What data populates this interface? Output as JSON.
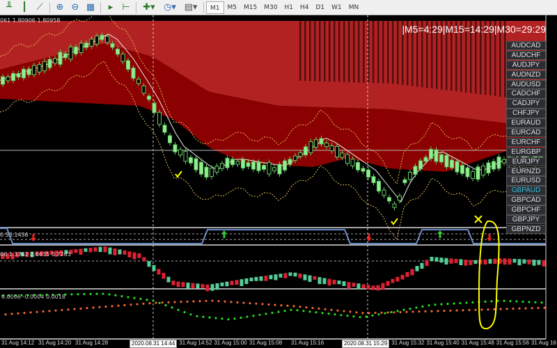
{
  "toolbar": {
    "icons": [
      "bar-chart-icon",
      "candlestick-icon",
      "line-chart-icon",
      "zoom-in-icon",
      "zoom-out-icon",
      "tile-windows-icon",
      "auto-scroll-icon",
      "chart-shift-icon",
      "new-indicator-icon",
      "periods-clock-icon",
      "templates-icon"
    ],
    "timeframes": [
      "M1",
      "M5",
      "M15",
      "M30",
      "H1",
      "H4",
      "D1",
      "W1",
      "MN"
    ],
    "active_timeframe": "M1"
  },
  "chart": {
    "ohlc_header": "061 1.80906 1.80958",
    "timer": "|M5=4:29|M15=14:29|M30=29:29",
    "indicator2_label": "0 53.1436",
    "indicator3_label": "06 1.3762 2.6635 0.7263",
    "indicator4_label": "0.0006 -0.0004 0.0018"
  },
  "symbols": [
    "AUDCAD",
    "AUDCHF",
    "AUDJPY",
    "AUDNZD",
    "AUDUSD",
    "CADCHF",
    "CADJPY",
    "CHFJPY",
    "EURAUD",
    "EURCAD",
    "EURCHF",
    "EURGBP",
    "EURJPY",
    "EURNZD",
    "EURUSD",
    "GBPAUD",
    "GBPCAD",
    "GBPCHF",
    "GBPJPY",
    "GBPNZD"
  ],
  "selected_symbol": "GBPAUD",
  "time_axis": [
    "31 Aug 14:12",
    "31 Aug 14:20",
    "31 Aug 14:28",
    "2020.08.31 14:44",
    "31 Aug 14:52",
    "31 Aug 15:00",
    "31 Aug 15:08",
    "31 Aug 15:16",
    "2020.08.31 15:29",
    "31 Aug 15:32",
    "31 Aug 15:40",
    "31 Aug 15:48",
    "31 Aug 15:56",
    "31 Aug 16"
  ],
  "colors": {
    "bull": "#90ee90",
    "bear": "#dc143c",
    "cloud_upper": "#b22222",
    "cloud_lower": "#8b0000",
    "annotation": "#ffff00",
    "selected_symbol": "#2ec4e0"
  }
}
